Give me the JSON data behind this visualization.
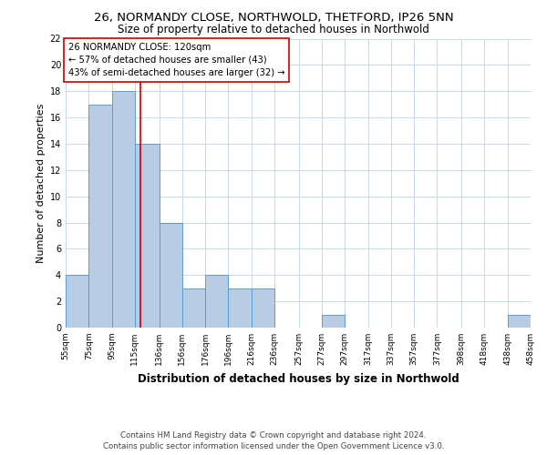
{
  "title": "26, NORMANDY CLOSE, NORTHWOLD, THETFORD, IP26 5NN",
  "subtitle": "Size of property relative to detached houses in Northwold",
  "xlabel": "Distribution of detached houses by size in Northwold",
  "ylabel": "Number of detached properties",
  "bin_edges": [
    55,
    75,
    95,
    115,
    136,
    156,
    176,
    196,
    216,
    236,
    257,
    277,
    297,
    317,
    337,
    357,
    377,
    398,
    418,
    438,
    458
  ],
  "bin_counts": [
    4,
    17,
    18,
    14,
    8,
    3,
    4,
    3,
    3,
    0,
    0,
    1,
    0,
    0,
    0,
    0,
    0,
    0,
    0,
    1
  ],
  "bar_color": "#b8cce4",
  "bar_edge_color": "#5b9bd5",
  "property_line_x": 120,
  "property_line_color": "#cc0000",
  "annotation_title": "26 NORMANDY CLOSE: 120sqm",
  "annotation_line1": "← 57% of detached houses are smaller (43)",
  "annotation_line2": "43% of semi-detached houses are larger (32) →",
  "ylim": [
    0,
    22
  ],
  "yticks": [
    0,
    2,
    4,
    6,
    8,
    10,
    12,
    14,
    16,
    18,
    20,
    22
  ],
  "tick_labels": [
    "55sqm",
    "75sqm",
    "95sqm",
    "115sqm",
    "136sqm",
    "156sqm",
    "176sqm",
    "196sqm",
    "216sqm",
    "236sqm",
    "257sqm",
    "277sqm",
    "297sqm",
    "317sqm",
    "337sqm",
    "357sqm",
    "377sqm",
    "398sqm",
    "418sqm",
    "438sqm",
    "458sqm"
  ],
  "footer_line1": "Contains HM Land Registry data © Crown copyright and database right 2024.",
  "footer_line2": "Contains public sector information licensed under the Open Government Licence v3.0.",
  "background_color": "#ffffff",
  "grid_color": "#c8d8e8"
}
